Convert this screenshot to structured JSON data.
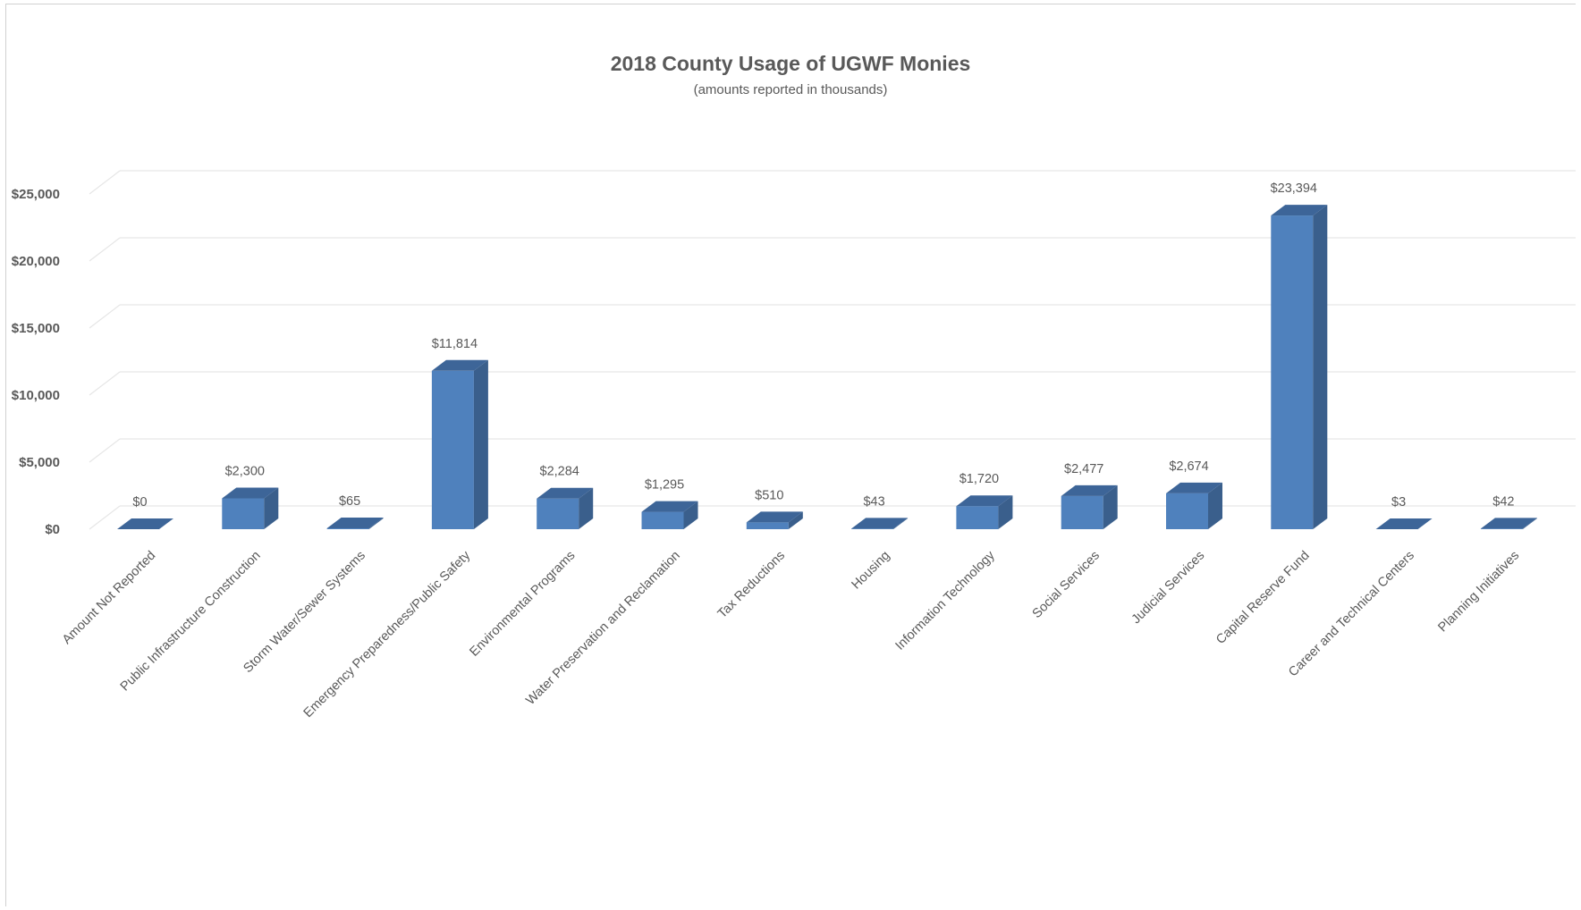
{
  "chart_data": {
    "type": "bar",
    "title": "2018 County Usage of UGWF Monies",
    "subtitle": "(amounts reported in thousands)",
    "categories": [
      "Amount Not Reported",
      "Public Infrastructure Construction",
      "Storm Water/Sewer Systems",
      "Emergency Preparedness/Public Safety",
      "Environmental Programs",
      "Water Preservation and Reclamation",
      "Tax Reductions",
      "Housing",
      "Information Technology",
      "Social Services",
      "Judicial Services",
      "Capital Reserve Fund",
      "Career and Technical Centers",
      "Planning Initiatives"
    ],
    "values": [
      0,
      2300,
      65,
      11814,
      2284,
      1295,
      510,
      43,
      1720,
      2477,
      2674,
      23394,
      3,
      42
    ],
    "data_labels": [
      "$0",
      "$2,300",
      "$65",
      "$11,814",
      "$2,284",
      "$1,295",
      "$510",
      "$43",
      "$1,720",
      "$2,477",
      "$2,674",
      "$23,394",
      "$3",
      "$42"
    ],
    "y_ticks": [
      0,
      5000,
      10000,
      15000,
      20000,
      25000
    ],
    "y_tick_labels": [
      "$0",
      "$5,000",
      "$10,000",
      "$15,000",
      "$20,000",
      "$25,000"
    ],
    "ylim": [
      0,
      25000
    ],
    "xlabel": "",
    "ylabel": "",
    "grid": true,
    "legend": "none",
    "colors": {
      "bar_front": "#4f81bd",
      "bar_side": "#3a5f8c",
      "bar_top": "#3d6598",
      "grid": "#e6e6e6",
      "text": "#595959"
    }
  }
}
